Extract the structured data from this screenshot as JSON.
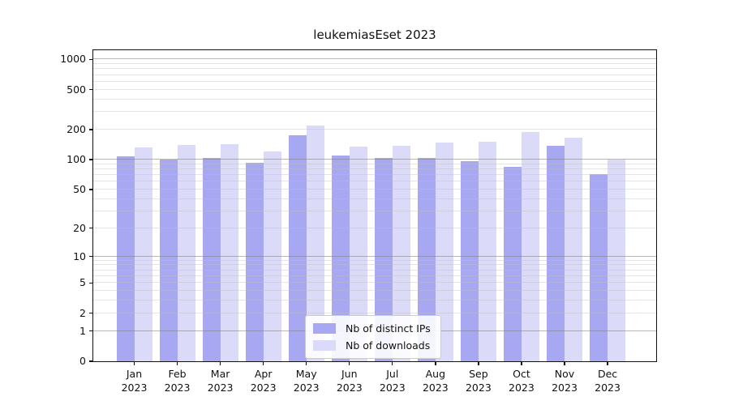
{
  "chart_data": {
    "type": "bar",
    "title": "leukemiasEset 2023",
    "categories": [
      "Jan 2023",
      "Feb 2023",
      "Mar 2023",
      "Apr 2023",
      "May 2023",
      "Jun 2023",
      "Jul 2023",
      "Aug 2023",
      "Sep 2023",
      "Oct 2023",
      "Nov 2023",
      "Dec 2023"
    ],
    "series": [
      {
        "name": "Nb of distinct IPs",
        "color": "#a8a8f2",
        "values": [
          107,
          100,
          103,
          92,
          175,
          110,
          104,
          103,
          97,
          84,
          138,
          71
        ]
      },
      {
        "name": "Nb of downloads",
        "color": "#dbdbf9",
        "values": [
          132,
          141,
          144,
          120,
          220,
          135,
          138,
          149,
          152,
          188,
          165,
          100
        ]
      }
    ],
    "y_scale": "log1p",
    "y_ticks": [
      0,
      1,
      2,
      5,
      10,
      20,
      50,
      100,
      200,
      500,
      1000
    ],
    "ylim": [
      0,
      1233
    ],
    "xlabel": "",
    "ylabel": "",
    "grid": true,
    "legend_position": "lower center",
    "axis_color": "#111111",
    "major_grid_values": [
      1,
      10,
      100,
      1000
    ]
  }
}
